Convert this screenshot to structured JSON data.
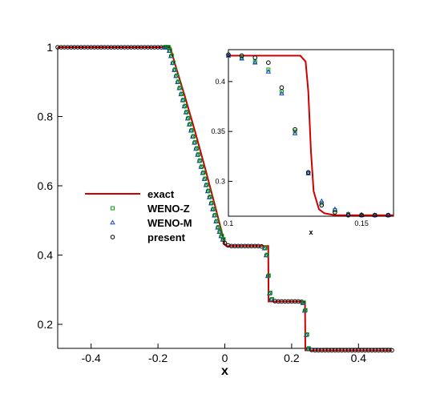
{
  "colors": {
    "exact": "#cc0000",
    "wenoz": "#00aa00",
    "wenom": "#1f3fd0",
    "present": "#000000",
    "axis": "#000000"
  },
  "chart_data": [
    {
      "type": "scatter",
      "xlabel": "x",
      "xlim": [
        -0.5,
        0.5
      ],
      "ylim": [
        0.13,
        1.0
      ],
      "xticks": [
        "-0.4",
        "-0.2",
        "0",
        "0.2",
        "0.4"
      ],
      "xtick_values": [
        -0.4,
        -0.2,
        0,
        0.2,
        0.4
      ],
      "yticks": [
        "0.2",
        "0.4",
        "0.6",
        "0.8",
        "1"
      ],
      "ytick_values": [
        0.2,
        0.4,
        0.6,
        0.8,
        1.0
      ],
      "legend_position": "center-left",
      "legend": [
        "exact",
        "WENO-Z",
        "WENO-M",
        "present"
      ],
      "series": [
        {
          "name": "exact",
          "kind": "line",
          "x": [
            -0.5,
            -0.163,
            -0.15,
            -0.12,
            -0.09,
            -0.06,
            -0.03,
            -0.01,
            0.0,
            0.005,
            0.13,
            0.131,
            0.24,
            0.241,
            0.5
          ],
          "y": [
            1.0,
            1.0,
            0.955,
            0.86,
            0.76,
            0.655,
            0.545,
            0.47,
            0.43,
            0.426,
            0.426,
            0.266,
            0.266,
            0.125,
            0.125
          ]
        },
        {
          "name": "present",
          "kind": "marker",
          "x": [
            -0.5,
            -0.17,
            -0.165,
            -0.16,
            -0.155,
            -0.15,
            -0.14,
            -0.13,
            -0.12,
            -0.11,
            -0.1,
            -0.09,
            -0.08,
            -0.07,
            -0.06,
            -0.05,
            -0.04,
            -0.03,
            -0.02,
            -0.01,
            0.0,
            0.01,
            0.02,
            0.03,
            0.04,
            0.05,
            0.06,
            0.07,
            0.08,
            0.09,
            0.1,
            0.11,
            0.12,
            0.125,
            0.13,
            0.135,
            0.14,
            0.15,
            0.16,
            0.17,
            0.18,
            0.19,
            0.2,
            0.21,
            0.22,
            0.23,
            0.235,
            0.24,
            0.245,
            0.25,
            0.26,
            0.27,
            0.28,
            0.29,
            0.3,
            0.35,
            0.4,
            0.45,
            0.5
          ],
          "y": [
            1.0,
            1.0,
            0.99,
            0.975,
            0.955,
            0.935,
            0.9,
            0.865,
            0.83,
            0.795,
            0.76,
            0.725,
            0.69,
            0.655,
            0.62,
            0.585,
            0.55,
            0.515,
            0.48,
            0.455,
            0.435,
            0.428,
            0.426,
            0.426,
            0.426,
            0.426,
            0.426,
            0.426,
            0.426,
            0.426,
            0.426,
            0.425,
            0.42,
            0.4,
            0.34,
            0.29,
            0.272,
            0.267,
            0.266,
            0.266,
            0.266,
            0.266,
            0.266,
            0.266,
            0.266,
            0.265,
            0.262,
            0.24,
            0.17,
            0.13,
            0.126,
            0.125,
            0.125,
            0.125,
            0.125,
            0.125,
            0.125,
            0.125,
            0.125
          ]
        }
      ]
    },
    {
      "type": "scatter",
      "xlabel": "x",
      "xlim": [
        0.1,
        0.162
      ],
      "ylim": [
        0.265,
        0.432
      ],
      "xticks": [
        "0.1",
        "0.15"
      ],
      "xtick_values": [
        0.1,
        0.15
      ],
      "yticks": [
        "0.3",
        "0.35",
        "0.4"
      ],
      "ytick_values": [
        0.3,
        0.35,
        0.4
      ],
      "series": [
        {
          "name": "exact",
          "kind": "line",
          "x": [
            0.1,
            0.127,
            0.129,
            0.13,
            0.131,
            0.132,
            0.134,
            0.136,
            0.14,
            0.162
          ],
          "y": [
            0.426,
            0.426,
            0.42,
            0.39,
            0.33,
            0.29,
            0.272,
            0.268,
            0.266,
            0.266
          ]
        },
        {
          "name": "WENO-Z",
          "kind": "marker",
          "x": [
            0.1,
            0.105,
            0.11,
            0.115,
            0.12,
            0.125,
            0.13,
            0.135,
            0.14,
            0.145,
            0.15,
            0.155,
            0.16
          ],
          "y": [
            0.426,
            0.424,
            0.42,
            0.412,
            0.39,
            0.35,
            0.308,
            0.278,
            0.271,
            0.267,
            0.266,
            0.266,
            0.266
          ]
        },
        {
          "name": "WENO-M",
          "kind": "marker",
          "x": [
            0.1,
            0.105,
            0.11,
            0.115,
            0.12,
            0.125,
            0.13,
            0.135,
            0.14,
            0.145,
            0.15,
            0.155,
            0.16
          ],
          "y": [
            0.426,
            0.423,
            0.419,
            0.41,
            0.388,
            0.348,
            0.308,
            0.28,
            0.272,
            0.267,
            0.266,
            0.266,
            0.266
          ]
        },
        {
          "name": "present",
          "kind": "marker",
          "x": [
            0.1,
            0.105,
            0.11,
            0.115,
            0.12,
            0.125,
            0.13,
            0.135,
            0.14,
            0.145,
            0.15,
            0.155,
            0.16
          ],
          "y": [
            0.427,
            0.426,
            0.424,
            0.419,
            0.394,
            0.352,
            0.309,
            0.276,
            0.269,
            0.266,
            0.266,
            0.266,
            0.266
          ]
        }
      ]
    }
  ]
}
